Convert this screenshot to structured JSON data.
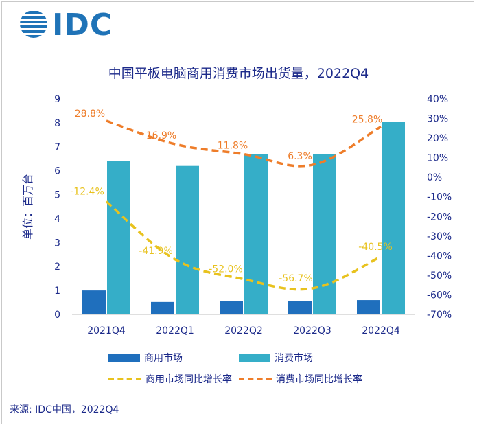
{
  "logo": {
    "text": "IDC"
  },
  "source": "来源: IDC中国，2022Q4",
  "legend": {
    "bar1": "商用市场",
    "bar2": "消费市场",
    "line1": "商用市场同比增长率",
    "line2": "消费市场同比增长率"
  },
  "colors": {
    "commercial_bar": "#1f6fbd",
    "consumer_bar": "#35aec8",
    "commercial_line": "#e8c21e",
    "consumer_line": "#ee7d2a",
    "text": "#1c2a8a"
  },
  "chart_data": {
    "type": "bar",
    "title": "中国平板电脑商用消费市场出货量，2022Q4",
    "ylabel": "单位：百万台",
    "categories": [
      "2021Q4",
      "2022Q1",
      "2022Q2",
      "2022Q3",
      "2022Q4"
    ],
    "ylim": [
      0,
      9
    ],
    "yticks": [
      "0",
      "1",
      "2",
      "3",
      "4",
      "5",
      "6",
      "7",
      "8",
      "9"
    ],
    "y2lim": [
      -70,
      40
    ],
    "y2ticks": [
      "-70%",
      "-60%",
      "-50%",
      "-40%",
      "-30%",
      "-20%",
      "-10%",
      "0%",
      "10%",
      "20%",
      "30%",
      "40%"
    ],
    "series": [
      {
        "name": "商用市场",
        "type": "bar",
        "values": [
          1.0,
          0.52,
          0.55,
          0.55,
          0.6
        ]
      },
      {
        "name": "消费市场",
        "type": "bar",
        "values": [
          6.4,
          6.2,
          6.7,
          6.7,
          8.05
        ]
      },
      {
        "name": "商用市场同比增长率",
        "type": "line",
        "axis": "right",
        "values": [
          -12.4,
          -41.9,
          -52.0,
          -56.7,
          -40.5
        ],
        "labels": [
          "-12.4%",
          "-41.9%",
          "-52.0%",
          "-56.7%",
          "-40.5%"
        ]
      },
      {
        "name": "消费市场同比增长率",
        "type": "line",
        "axis": "right",
        "values": [
          28.8,
          16.9,
          11.8,
          6.3,
          25.8
        ],
        "labels": [
          "28.8%",
          "16.9%",
          "11.8%",
          "6.3%",
          "25.8%"
        ]
      }
    ],
    "grid": true,
    "legend_position": "bottom"
  }
}
